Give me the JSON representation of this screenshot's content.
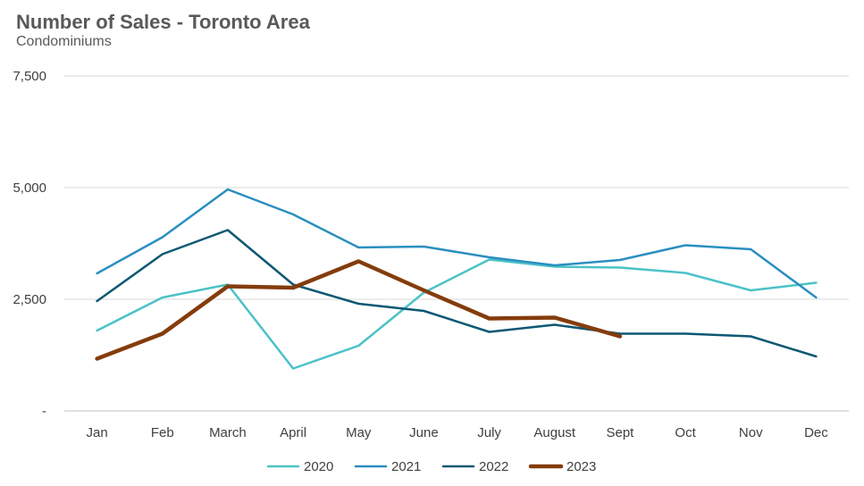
{
  "chart_data": {
    "type": "line",
    "title": "Number of Sales - Toronto Area",
    "subtitle": "Condominiums",
    "categories": [
      "Jan",
      "Feb",
      "March",
      "April",
      "May",
      "June",
      "July",
      "August",
      "Sept",
      "Oct",
      "Nov",
      "Dec"
    ],
    "y_ticks": [
      {
        "value": 0,
        "label": "-"
      },
      {
        "value": 2500,
        "label": "2,500"
      },
      {
        "value": 5000,
        "label": "5,000"
      },
      {
        "value": 7500,
        "label": "7,500"
      }
    ],
    "ylim": [
      0,
      7500
    ],
    "grid": true,
    "legend_position": "bottom",
    "series": [
      {
        "name": "2020",
        "color": "#4BC2C8",
        "width": 2.5,
        "values": [
          1800,
          2540,
          2830,
          950,
          1460,
          2650,
          3390,
          3230,
          3210,
          3090,
          2700,
          2870
        ]
      },
      {
        "name": "2021",
        "color": "#2A8FC0",
        "width": 2.5,
        "values": [
          3080,
          3890,
          4960,
          4400,
          3660,
          3680,
          3440,
          3260,
          3380,
          3710,
          3620,
          2540
        ]
      },
      {
        "name": "2022",
        "color": "#0D5873",
        "width": 2.5,
        "values": [
          2460,
          3510,
          4050,
          2830,
          2400,
          2240,
          1770,
          1930,
          1730,
          1730,
          1670,
          1220
        ]
      },
      {
        "name": "2023",
        "color": "#843C0C",
        "width": 4.5,
        "values": [
          1170,
          1730,
          2790,
          2760,
          3350,
          2700,
          2070,
          2090,
          1670,
          null,
          null,
          null
        ]
      }
    ]
  }
}
